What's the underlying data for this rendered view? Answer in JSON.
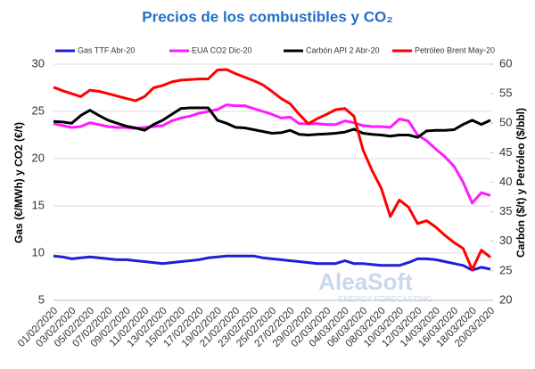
{
  "chart_data": {
    "type": "line",
    "title": "Precios de los combustibles y CO₂",
    "ylabel": "Gas (€/MWh) y CO2 (€/t)",
    "y2label": "Carbón ($/t) y Petróleo ($/bbl)",
    "watermark": "AleaSoft",
    "watermark_sub": "ENERGY FORECASTING",
    "categories": [
      "01/02/2020",
      null,
      "03/02/2020",
      null,
      "05/02/2020",
      null,
      "07/02/2020",
      null,
      "09/02/2020",
      null,
      "11/02/2020",
      null,
      "13/02/2020",
      null,
      "15/02/2020",
      null,
      "17/02/2020",
      null,
      "19/02/2020",
      null,
      "21/02/2020",
      null,
      "23/02/2020",
      null,
      "25/02/2020",
      null,
      "27/02/2020",
      null,
      "29/02/2020",
      null,
      "02/03/2020",
      null,
      "04/03/2020",
      null,
      "06/03/2020",
      null,
      "08/03/2020",
      null,
      "10/03/2020",
      null,
      "12/03/2020",
      null,
      "14/03/2020",
      null,
      "16/03/2020",
      null,
      "18/03/2020",
      null,
      "20/03/2020"
    ],
    "ylim": [
      5,
      30
    ],
    "yticks": [
      5,
      10,
      15,
      20,
      25,
      30
    ],
    "y2lim": [
      20,
      60
    ],
    "y2ticks": [
      20,
      25,
      30,
      35,
      40,
      45,
      50,
      55,
      60
    ],
    "grid": true,
    "legend": "top",
    "series": [
      {
        "name": "Gas TTF Abr-20",
        "color": "#1f1fd6",
        "values": [
          9.7,
          9.6,
          9.4,
          9.5,
          9.6,
          9.5,
          9.4,
          9.3,
          9.3,
          9.2,
          9.1,
          9.0,
          8.9,
          9.0,
          9.1,
          9.2,
          9.3,
          9.5,
          9.6,
          9.7,
          9.7,
          9.7,
          9.7,
          9.5,
          9.4,
          9.3,
          9.2,
          9.1,
          9.0,
          8.9,
          8.9,
          8.9,
          9.2,
          8.9,
          8.9,
          8.8,
          8.7,
          8.7,
          8.7,
          9.0,
          9.4,
          9.4,
          9.3,
          9.1,
          8.9,
          8.7,
          8.2,
          8.5,
          8.3
        ]
      },
      {
        "name": "EUA CO2 Dic-20",
        "color": "#ff1aff",
        "values": [
          23.7,
          23.5,
          23.3,
          23.4,
          23.8,
          23.6,
          23.4,
          23.3,
          23.3,
          23.2,
          23.3,
          23.4,
          23.5,
          24.0,
          24.3,
          24.5,
          24.8,
          25.0,
          25.2,
          25.7,
          25.6,
          25.6,
          25.3,
          25.0,
          24.7,
          24.3,
          24.4,
          23.7,
          23.7,
          23.7,
          23.6,
          23.6,
          24.0,
          23.8,
          23.5,
          23.4,
          23.4,
          23.3,
          24.2,
          24.0,
          22.5,
          21.9,
          21.0,
          20.2,
          19.2,
          17.5,
          15.3,
          16.4,
          16.1
        ]
      },
      {
        "name": "Carbón API 2 Abr-20",
        "color": "#000000",
        "axis": "y2",
        "values": [
          50.3,
          50.2,
          50.0,
          51.3,
          52.2,
          51.3,
          50.5,
          50.0,
          49.5,
          49.2,
          48.8,
          49.8,
          50.5,
          51.5,
          52.5,
          52.6,
          52.6,
          52.6,
          50.5,
          50.0,
          49.3,
          49.2,
          48.9,
          48.6,
          48.3,
          48.4,
          48.8,
          48.1,
          48.0,
          48.1,
          48.2,
          48.3,
          48.5,
          49.0,
          48.3,
          48.1,
          48.0,
          47.8,
          48.0,
          48.0,
          47.6,
          48.7,
          48.8,
          48.8,
          48.9,
          49.8,
          50.5,
          49.8,
          50.5
        ]
      },
      {
        "name": "Petróleo Brent May-20",
        "color": "#ff0000",
        "axis": "y2",
        "values": [
          56.1,
          55.5,
          55.0,
          54.5,
          55.6,
          55.4,
          55.0,
          54.6,
          54.2,
          53.8,
          54.5,
          56.0,
          56.4,
          57.0,
          57.3,
          57.4,
          57.5,
          57.5,
          59.0,
          59.1,
          58.4,
          57.8,
          57.2,
          56.5,
          55.4,
          54.2,
          53.3,
          51.5,
          49.9,
          50.8,
          51.5,
          52.3,
          52.5,
          51.2,
          45.5,
          42.0,
          39.0,
          34.2,
          37.0,
          35.8,
          33.0,
          33.5,
          32.4,
          31.0,
          29.8,
          28.8,
          25.2,
          28.5,
          27.3
        ]
      }
    ]
  }
}
